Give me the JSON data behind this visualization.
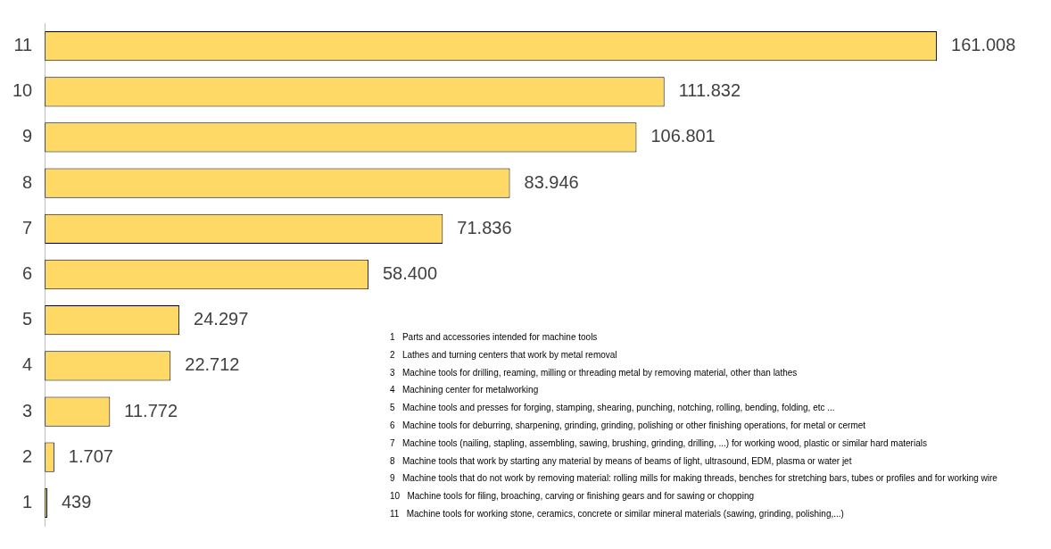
{
  "chart_data": {
    "type": "bar",
    "orientation": "horizontal",
    "categories": [
      "11",
      "10",
      "9",
      "8",
      "7",
      "6",
      "5",
      "4",
      "3",
      "2",
      "1"
    ],
    "values": [
      161008,
      111832,
      106801,
      83946,
      71836,
      58400,
      24297,
      22712,
      11772,
      1707,
      439
    ],
    "value_labels": [
      "161.008",
      "111.832",
      "106.801",
      "83.946",
      "71.836",
      "58.400",
      "24.297",
      "22.712",
      "11.772",
      "1.707",
      "439"
    ],
    "color": "#ffd966",
    "grid": false,
    "legend": false,
    "tick_labels": "y",
    "annotations": [
      "1   Parts and accessories intended for machine tools",
      "2   Lathes and turning centers that work by metal removal",
      "3   Machine tools for drilling, reaming, milling or threading metal by removing material, other than lathes",
      "4   Machining center for metalworking",
      "5   Machine tools and presses for forging, stamping, shearing, punching, notching, rolling, bending, folding, etc ...",
      "6   Machine tools for deburring, sharpening, grinding, grinding, polishing or other finishing operations, for metal or cermet",
      "7   Machine tools (nailing, stapling, assembling, sawing, brushing, grinding, drilling, ...) for working wood, plastic or similar hard materials",
      "8   Machine tools that work by starting any material by means of beams of light, ultrasound, EDM, plasma or water jet",
      "9   Machine tools that do not work by removing material: rolling mills for making threads, benches for stretching bars, tubes or profiles and for working wire",
      "10   Machine tools for filing, broaching, carving or finishing gears and for sawing or chopping",
      "11   Machine tools for working stone, ceramics, concrete or similar mineral materials (sawing, grinding, polishing,...)"
    ]
  }
}
